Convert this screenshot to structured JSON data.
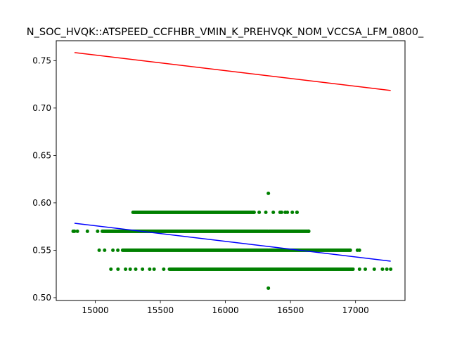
{
  "chart_data": {
    "type": "scatter",
    "title": "N_SOC_HVQK::ATSPEED_CCFHBR_VMIN_K_PREHVQK_NOM_VCCSA_LFM_0800_",
    "xlabel": "",
    "ylabel": "",
    "xlim": [
      14700,
      17380
    ],
    "ylim": [
      0.497,
      0.771
    ],
    "x_ticks": [
      15000,
      15500,
      16000,
      16500,
      17000
    ],
    "x_tick_labels": [
      "15000",
      "15500",
      "16000",
      "16500",
      "17000"
    ],
    "y_ticks": [
      0.5,
      0.55,
      0.6,
      0.65,
      0.7,
      0.75
    ],
    "y_tick_labels": [
      "0.50",
      "0.55",
      "0.60",
      "0.65",
      "0.70",
      "0.75"
    ],
    "grid": false,
    "colors": {
      "points": "#008000",
      "upper_line": "#ff0000",
      "fit_line": "#0000ff"
    },
    "series": [
      {
        "kind": "scatter",
        "color": "#008000",
        "bands": [
          {
            "y": 0.53,
            "x_min": 15120,
            "x_max": 17270,
            "dense_from": 15570,
            "dense_to": 16980
          },
          {
            "y": 0.55,
            "x_min": 15030,
            "x_max": 17030,
            "dense_from": 15210,
            "dense_to": 16960
          },
          {
            "y": 0.57,
            "x_min": 14830,
            "x_max": 16640,
            "dense_from": 15060,
            "dense_to": 16640
          },
          {
            "y": 0.59,
            "x_min": 15290,
            "x_max": 16550,
            "dense_from": 15290,
            "dense_to": 16220
          }
        ],
        "extra_points": [
          {
            "x": 16330,
            "y": 0.61
          },
          {
            "x": 16330,
            "y": 0.51
          },
          {
            "x": 14840,
            "y": 0.57
          },
          {
            "x": 16460,
            "y": 0.59
          },
          {
            "x": 16420,
            "y": 0.59
          },
          {
            "x": 16550,
            "y": 0.59
          }
        ]
      },
      {
        "kind": "line",
        "color": "#ff0000",
        "points": [
          {
            "x": 14840,
            "y": 0.7585
          },
          {
            "x": 17270,
            "y": 0.7185
          }
        ]
      },
      {
        "kind": "line",
        "color": "#0000ff",
        "points": [
          {
            "x": 14840,
            "y": 0.5785
          },
          {
            "x": 17270,
            "y": 0.5385
          }
        ]
      }
    ]
  }
}
